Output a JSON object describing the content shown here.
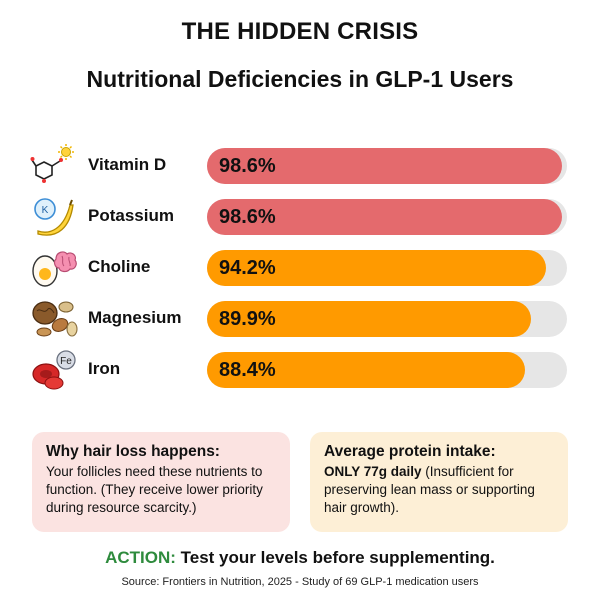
{
  "header": {
    "title": "THE HIDDEN CRISIS",
    "subtitle": "Nutritional Deficiencies in GLP-1 Users"
  },
  "chart_data": {
    "type": "bar",
    "orientation": "horizontal",
    "title": "Nutritional Deficiencies in GLP-1 Users",
    "categories": [
      "Vitamin D",
      "Potassium",
      "Choline",
      "Magnesium",
      "Iron"
    ],
    "values": [
      98.6,
      98.6,
      94.2,
      89.9,
      88.4
    ],
    "value_labels": [
      "98.6%",
      "98.6%",
      "94.2%",
      "89.9%",
      "88.4%"
    ],
    "xlim": [
      0,
      100
    ],
    "icons": [
      "molecule-sun-icon",
      "banana-icon",
      "egg-brain-icon",
      "nuts-icon",
      "blood-cells-icon"
    ],
    "grid": false,
    "colors": [
      "#e46a6d",
      "#e46a6d",
      "#ff9a00",
      "#ff9a00",
      "#ff9a00"
    ],
    "track_color": "#e6e6e6"
  },
  "cards": {
    "left": {
      "title": "Why hair loss happens:",
      "body": "Your follicles need these nutrients to function. (They receive lower priority during resource scarcity.)"
    },
    "right": {
      "title": "Average protein intake:",
      "emphasis": "ONLY 77g daily",
      "body": " (Insufficient for preserving lean mass or supporting hair growth)."
    }
  },
  "footer": {
    "action_key": "ACTION:",
    "action_text": " Test your levels before supplementing.",
    "source": "Source: Frontiers in Nutrition, 2025 - Study of 69 GLP-1 medication users"
  }
}
